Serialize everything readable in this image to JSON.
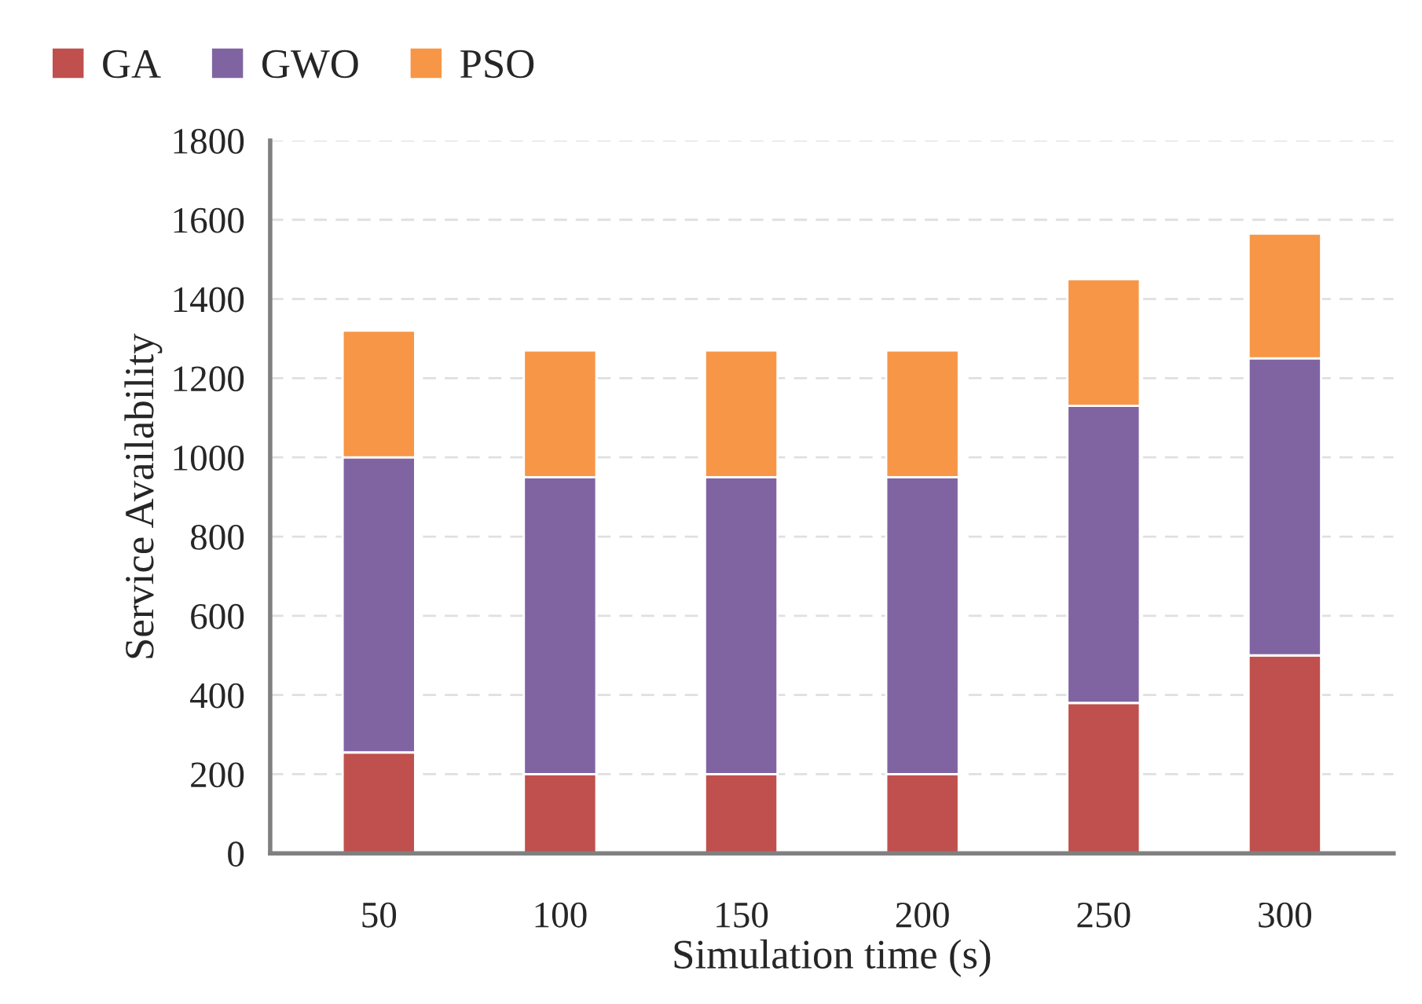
{
  "chart_data": {
    "type": "bar",
    "stacked": true,
    "xlabel": "Simulation time (s)",
    "ylabel": "Service Availability",
    "categories": [
      "50",
      "100",
      "150",
      "200",
      "250",
      "300"
    ],
    "series": [
      {
        "name": "GA",
        "color": "#c0504d",
        "values": [
          255,
          200,
          200,
          200,
          380,
          500
        ]
      },
      {
        "name": "GWO",
        "color": "#8064a2",
        "values": [
          745,
          750,
          750,
          750,
          750,
          750
        ]
      },
      {
        "name": "PSO",
        "color": "#f79646",
        "values": [
          320,
          320,
          320,
          320,
          320,
          315
        ]
      }
    ],
    "ylim": [
      0,
      1800
    ],
    "yticks": [
      0,
      200,
      400,
      600,
      800,
      1000,
      1200,
      1400,
      1600,
      1800
    ],
    "grid": true,
    "legend": "top left"
  }
}
